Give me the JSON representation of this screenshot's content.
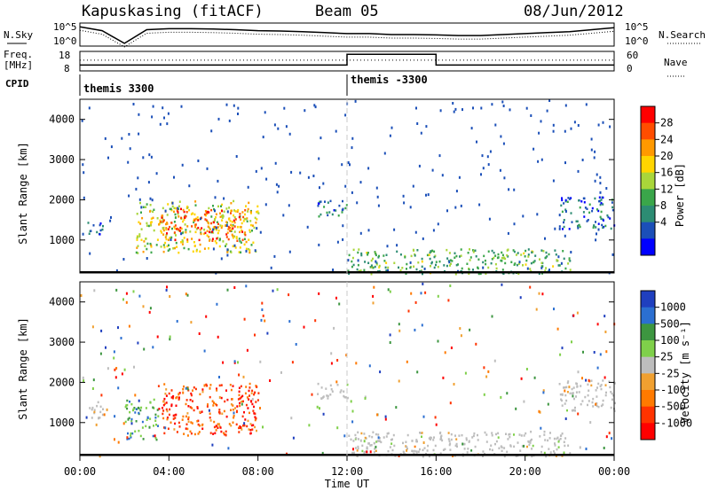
{
  "header": {
    "station": "Kapuskasing (fitACF)",
    "beam": "Beam 05",
    "date": "08/Jun/2012"
  },
  "colors": {
    "axis": "#000000",
    "noise_line": "#000000",
    "scatter_grey": "#bdbdbd",
    "dashed_marker": "#c8c8c8"
  },
  "chart_data": [
    {
      "type": "line",
      "panel": "noise",
      "left_label": "N.Sky",
      "right_label": "N.Search",
      "left_ticks": [
        "10^5",
        "10^0"
      ],
      "right_ticks": [
        "10^5",
        "10^0"
      ],
      "xlim": [
        0,
        24
      ],
      "series": [
        {
          "x": [
            0,
            1,
            2,
            3,
            4,
            5,
            6,
            7,
            8,
            9,
            10,
            11,
            12,
            13,
            14,
            15,
            16,
            17,
            18,
            19,
            20,
            21,
            22,
            23,
            24
          ],
          "values": [
            0.9,
            0.7,
            0.05,
            0.75,
            0.8,
            0.8,
            0.78,
            0.75,
            0.7,
            0.68,
            0.65,
            0.6,
            0.55,
            0.55,
            0.5,
            0.5,
            0.48,
            0.45,
            0.45,
            0.5,
            0.55,
            0.6,
            0.65,
            0.75,
            0.85
          ]
        }
      ]
    },
    {
      "type": "line",
      "panel": "frequency",
      "left_label_lines": [
        "Freq.",
        "[MHz]"
      ],
      "right_label": "Nave",
      "left_ticks": [
        "18",
        "8"
      ],
      "right_ticks": [
        "60",
        "0"
      ],
      "xlim": [
        0,
        24
      ],
      "series": [
        {
          "x": [
            0,
            12,
            12,
            16,
            16,
            24
          ],
          "values": [
            0.3,
            0.3,
            0.85,
            0.85,
            0.3,
            0.3
          ]
        }
      ]
    },
    {
      "type": "table",
      "panel": "cpid",
      "label": "CPID",
      "entries": [
        {
          "start": 0,
          "text": "themis 3300"
        },
        {
          "start": 12,
          "text": "themis -3300"
        }
      ]
    },
    {
      "type": "heatmap",
      "panel": "power",
      "ylabel": "Slant Range [km]",
      "xlim": [
        0,
        24
      ],
      "ylim": [
        180,
        4500
      ],
      "yticks": [
        1000,
        2000,
        3000,
        4000
      ],
      "colorbar": {
        "label": "Power [dB]",
        "ticks": [
          "28",
          "24",
          "20",
          "16",
          "12",
          "8",
          "4"
        ],
        "colors": [
          "#ff0000",
          "#ff4d00",
          "#ff9900",
          "#ffd500",
          "#a9d63a",
          "#3aa64a",
          "#2c8c73",
          "#1b4fb8",
          "#0000ff"
        ]
      },
      "regions": [
        {
          "x0": 0.2,
          "x1": 1.0,
          "y0": 1100,
          "y1": 1500,
          "level": 0.2
        },
        {
          "x0": 2.5,
          "x1": 8.0,
          "y0": 700,
          "y1": 2000,
          "level": 0.55
        },
        {
          "x0": 3.5,
          "x1": 7.5,
          "y0": 1000,
          "y1": 1800,
          "level": 0.8
        },
        {
          "x0": 10.5,
          "x1": 12.0,
          "y0": 1600,
          "y1": 2000,
          "level": 0.25
        },
        {
          "x0": 12.0,
          "x1": 22.0,
          "y0": 180,
          "y1": 800,
          "level": 0.4
        },
        {
          "x0": 21.5,
          "x1": 24.0,
          "y0": 1300,
          "y1": 2100,
          "level": 0.2
        }
      ]
    },
    {
      "type": "heatmap",
      "panel": "velocity",
      "ylabel": "Slant Range [km]",
      "xlabel": "Time UT",
      "xlim": [
        0,
        24
      ],
      "ylim": [
        180,
        4500
      ],
      "yticks": [
        1000,
        2000,
        3000,
        4000
      ],
      "xticks": [
        "00:00",
        "04:00",
        "08:00",
        "12:00",
        "16:00",
        "20:00",
        "00:00"
      ],
      "colorbar": {
        "label": "Velocity [m s⁻¹]",
        "ticks": [
          "1000",
          "500",
          "100",
          "25",
          "-25",
          "-100",
          "-500",
          "-1000"
        ],
        "colors": [
          "#1f3fbf",
          "#2b6fd1",
          "#3d9640",
          "#7fd04a",
          "#bdbdbd",
          "#f0a030",
          "#ff7a00",
          "#ff3300",
          "#ff0000"
        ]
      },
      "regions": [
        {
          "x0": 0.2,
          "x1": 1.0,
          "y0": 1100,
          "y1": 1600,
          "level": 0.5
        },
        {
          "x0": 2.0,
          "x1": 3.5,
          "y0": 600,
          "y1": 1600,
          "level": 0.72
        },
        {
          "x0": 3.5,
          "x1": 8.0,
          "y0": 700,
          "y1": 2000,
          "level": 0.2
        },
        {
          "x0": 10.5,
          "x1": 12.0,
          "y0": 1600,
          "y1": 2000,
          "level": 0.5
        },
        {
          "x0": 12.0,
          "x1": 22.0,
          "y0": 180,
          "y1": 800,
          "level": 0.5
        },
        {
          "x0": 21.5,
          "x1": 24.0,
          "y0": 1300,
          "y1": 2100,
          "level": 0.5
        }
      ]
    }
  ]
}
